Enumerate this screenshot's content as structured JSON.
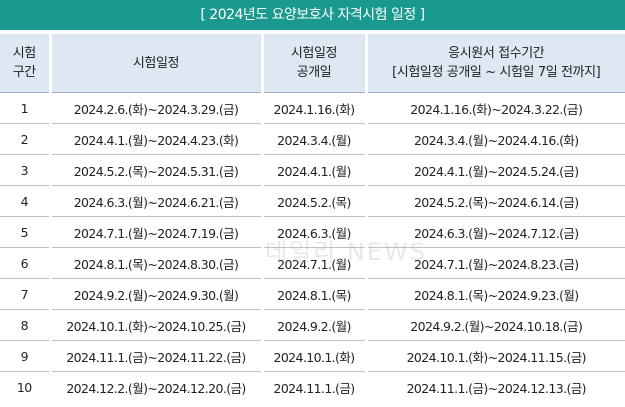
{
  "title": "[ 2024년도 요양보호사 자격시험 일정 ]",
  "headers": {
    "round_line1": "시험",
    "round_line2": "구간",
    "exam_period": "시험일정",
    "announce_line1": "시험일정",
    "announce_line2": "공개일",
    "apply_line1": "응시원서 접수기간",
    "apply_line2": "[시험일정 공개일 ~ 시험일 7일 전까지]"
  },
  "rows": [
    {
      "round": "1",
      "exam": "2024.2.6.(화)~2024.3.29.(금)",
      "announce": "2024.1.16.(화)",
      "apply": "2024.1.16.(화)~2024.3.22.(금)"
    },
    {
      "round": "2",
      "exam": "2024.4.1.(월)~2024.4.23.(화)",
      "announce": "2024.3.4.(월)",
      "apply": "2024.3.4.(월)~2024.4.16.(화)"
    },
    {
      "round": "3",
      "exam": "2024.5.2.(목)~2024.5.31.(금)",
      "announce": "2024.4.1.(월)",
      "apply": "2024.4.1.(월)~2024.5.24.(금)"
    },
    {
      "round": "4",
      "exam": "2024.6.3.(월)~2024.6.21.(금)",
      "announce": "2024.5.2.(목)",
      "apply": "2024.5.2.(목)~2024.6.14.(금)"
    },
    {
      "round": "5",
      "exam": "2024.7.1.(월)~2024.7.19.(금)",
      "announce": "2024.6.3.(월)",
      "apply": "2024.6.3.(월)~2024.7.12.(금)"
    },
    {
      "round": "6",
      "exam": "2024.8.1.(목)~2024.8.30.(금)",
      "announce": "2024.7.1.(월)",
      "apply": "2024.7.1.(월)~2024.8.23.(금)"
    },
    {
      "round": "7",
      "exam": "2024.9.2.(월)~2024.9.30.(월)",
      "announce": "2024.8.1.(목)",
      "apply": "2024.8.1.(목)~2024.9.23.(월)"
    },
    {
      "round": "8",
      "exam": "2024.10.1.(화)~2024.10.25.(금)",
      "announce": "2024.9.2.(월)",
      "apply": "2024.9.2.(월)~2024.10.18.(금)"
    },
    {
      "round": "9",
      "exam": "2024.11.1.(금)~2024.11.22.(금)",
      "announce": "2024.10.1.(화)",
      "apply": "2024.10.1.(화)~2024.11.15.(금)"
    },
    {
      "round": "10",
      "exam": "2024.12.2.(월)~2024.12.20.(금)",
      "announce": "2024.11.1.(금)",
      "apply": "2024.11.1.(금)~2024.12.13.(금)"
    }
  ],
  "watermark": "데일리 NEWS",
  "colors": {
    "title_bg": "#1a9a8f",
    "header_bg": "#dde8f2"
  }
}
